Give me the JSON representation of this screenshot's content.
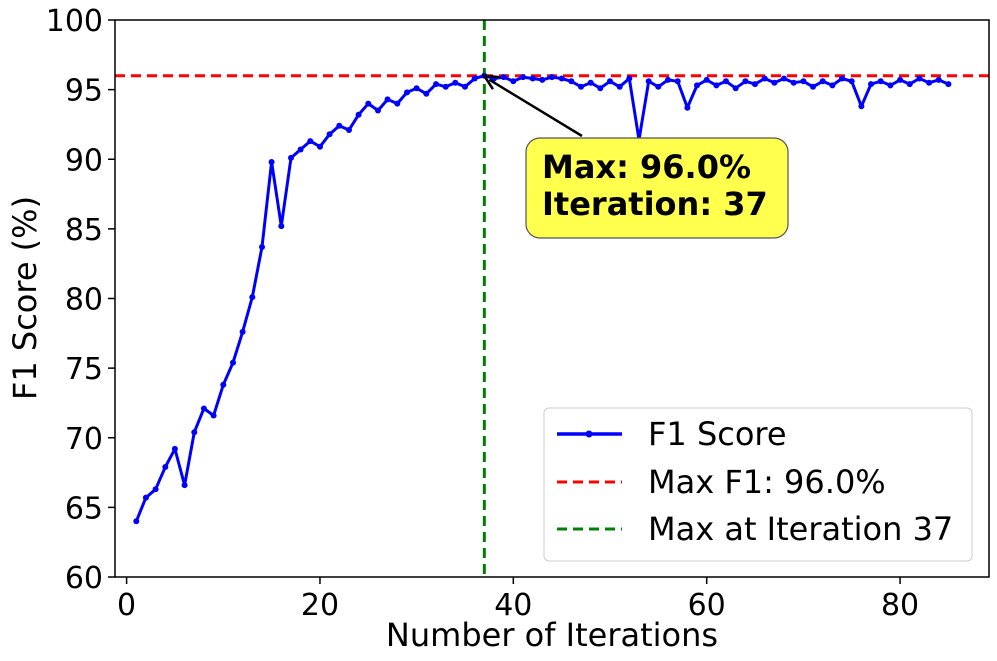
{
  "chart_data": {
    "type": "line",
    "xlabel": "Number of Iterations",
    "ylabel": "F1 Score (%)",
    "xlim": [
      -1.2,
      89.2
    ],
    "ylim": [
      60,
      100
    ],
    "xticks": [
      0,
      20,
      40,
      60,
      80
    ],
    "yticks": [
      60,
      65,
      70,
      75,
      80,
      85,
      90,
      95,
      100
    ],
    "grid": false,
    "legend_position": "lower-right",
    "series": [
      {
        "name": "F1 Score",
        "color": "#0000ff",
        "x": [
          1,
          2,
          3,
          4,
          5,
          6,
          7,
          8,
          9,
          10,
          11,
          12,
          13,
          14,
          15,
          16,
          17,
          18,
          19,
          20,
          21,
          22,
          23,
          24,
          25,
          26,
          27,
          28,
          29,
          30,
          31,
          32,
          33,
          34,
          35,
          36,
          37,
          38,
          39,
          40,
          41,
          42,
          43,
          44,
          45,
          46,
          47,
          48,
          49,
          50,
          51,
          52,
          53,
          54,
          55,
          56,
          57,
          58,
          59,
          60,
          61,
          62,
          63,
          64,
          65,
          66,
          67,
          68,
          69,
          70,
          71,
          72,
          73,
          74,
          75,
          76,
          77,
          78,
          79,
          80,
          81,
          82,
          83,
          84,
          85
        ],
        "values": [
          64.0,
          65.7,
          66.3,
          67.9,
          69.2,
          66.6,
          70.4,
          72.1,
          71.6,
          73.8,
          75.4,
          77.6,
          80.1,
          83.7,
          89.8,
          85.2,
          90.1,
          90.7,
          91.3,
          90.9,
          91.8,
          92.4,
          92.1,
          93.2,
          94.0,
          93.5,
          94.3,
          94.0,
          94.8,
          95.1,
          94.7,
          95.4,
          95.2,
          95.5,
          95.2,
          95.8,
          96.0,
          95.8,
          95.9,
          95.6,
          95.9,
          95.8,
          95.7,
          95.9,
          95.8,
          95.6,
          95.2,
          95.5,
          95.1,
          95.6,
          95.2,
          95.8,
          91.4,
          95.6,
          95.2,
          95.7,
          95.6,
          93.7,
          95.3,
          95.7,
          95.3,
          95.6,
          95.1,
          95.6,
          95.4,
          95.8,
          95.5,
          95.8,
          95.5,
          95.6,
          95.2,
          95.6,
          95.3,
          95.8,
          95.6,
          93.8,
          95.4,
          95.6,
          95.3,
          95.7,
          95.4,
          95.8,
          95.5,
          95.7,
          95.4
        ]
      }
    ],
    "reference_lines": [
      {
        "kind": "horizontal",
        "value": 96.0,
        "color": "#ff0000",
        "label": "Max F1: 96.0%"
      },
      {
        "kind": "vertical",
        "value": 37,
        "color": "#008000",
        "label": "Max at Iteration 37"
      }
    ],
    "annotation": {
      "line1": "Max: 96.0%",
      "line2": "Iteration: 37",
      "point": [
        37,
        96.0
      ],
      "box_color": "#ffff4d"
    }
  }
}
